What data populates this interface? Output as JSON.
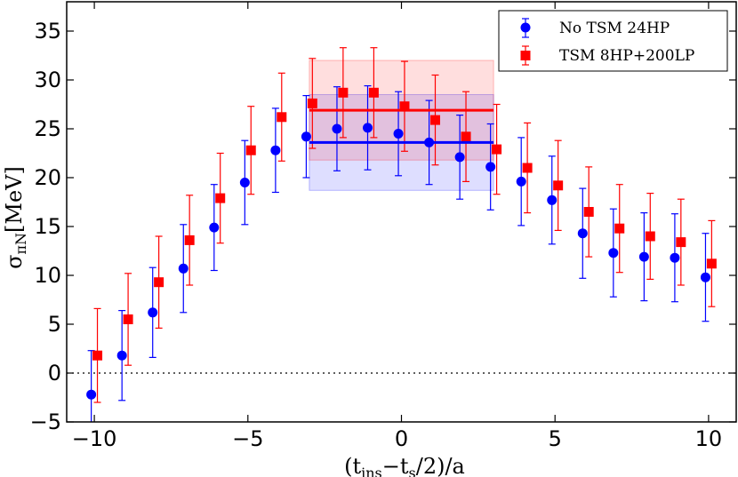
{
  "chart_data": {
    "type": "scatter",
    "xlabel": "(t_ins − t_s/2)/a",
    "xlabel_parts": {
      "open": "(t",
      "sub1": "ins",
      "mid": "−t",
      "sub2": "s",
      "close": "/2)/a"
    },
    "ylabel": "σ_πN[MeV]",
    "ylabel_parts": {
      "sigma": "σ",
      "sub": "πN",
      "unit": "[MeV]"
    },
    "xlim": [
      -10.9,
      10.9
    ],
    "ylim": [
      -5,
      38
    ],
    "xticks": [
      -10,
      -5,
      0,
      5,
      10
    ],
    "xtick_labels": [
      "−10",
      "−5",
      "0",
      "5",
      "10"
    ],
    "yticks": [
      -5,
      0,
      5,
      10,
      15,
      20,
      25,
      30,
      35
    ],
    "ytick_labels": [
      "−5",
      "0",
      "5",
      "10",
      "15",
      "20",
      "25",
      "30",
      "35"
    ],
    "zero_line": 0,
    "legend_position": "top-right",
    "series": [
      {
        "name": "No TSM 24HP",
        "color": "#0000ff",
        "marker": "circle",
        "x_offset": -0.1,
        "x": [
          -10,
          -9,
          -8,
          -7,
          -6,
          -5,
          -4,
          -3,
          -2,
          -1,
          0,
          1,
          2,
          3,
          4,
          5,
          6,
          7,
          8,
          9,
          10
        ],
        "y": [
          -2.2,
          1.8,
          6.2,
          10.7,
          14.9,
          19.5,
          22.8,
          24.2,
          25.0,
          25.1,
          24.5,
          23.6,
          22.1,
          21.1,
          19.6,
          17.7,
          14.3,
          12.3,
          11.9,
          11.8,
          9.8
        ],
        "err": [
          4.5,
          4.6,
          4.6,
          4.5,
          4.4,
          4.3,
          4.3,
          4.2,
          4.3,
          4.3,
          4.3,
          4.3,
          4.3,
          4.4,
          4.5,
          4.5,
          4.6,
          4.5,
          4.5,
          4.5,
          4.5
        ],
        "fit": {
          "value": 23.6,
          "err": 4.9,
          "x_range": [
            -3,
            3
          ]
        }
      },
      {
        "name": "TSM 8HP+200LP",
        "color": "#ff0000",
        "marker": "square",
        "x_offset": 0.1,
        "x": [
          -10,
          -9,
          -8,
          -7,
          -6,
          -5,
          -4,
          -3,
          -2,
          -1,
          0,
          1,
          2,
          3,
          4,
          5,
          6,
          7,
          8,
          9,
          10
        ],
        "y": [
          1.8,
          5.5,
          9.3,
          13.6,
          17.9,
          22.8,
          26.2,
          27.6,
          28.7,
          28.7,
          27.3,
          25.9,
          24.2,
          22.9,
          21.0,
          19.2,
          16.5,
          14.8,
          14.0,
          13.4,
          11.2
        ],
        "err": [
          4.8,
          4.7,
          4.7,
          4.6,
          4.6,
          4.5,
          4.5,
          4.6,
          4.6,
          4.6,
          4.6,
          4.6,
          4.6,
          4.6,
          4.6,
          4.6,
          4.6,
          4.5,
          4.4,
          4.4,
          4.4
        ],
        "fit": {
          "value": 26.9,
          "err": 5.1,
          "x_range": [
            -3,
            3
          ]
        }
      }
    ]
  }
}
